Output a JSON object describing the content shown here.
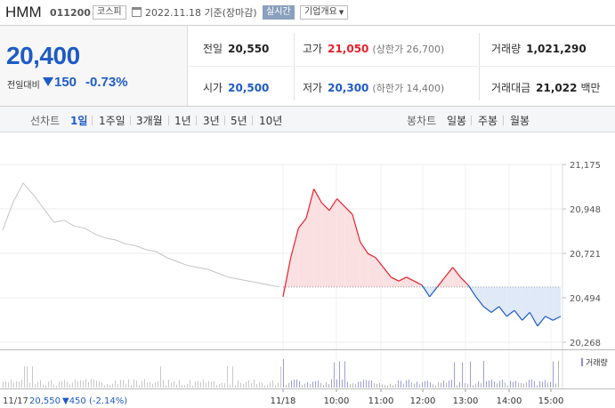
{
  "header": {
    "stock_name": "HMM",
    "stock_code": "011200",
    "market": "코스피",
    "date_text": "2022.11.18 기준(장마감)",
    "realtime_label": "실시간",
    "company_info_label": "기업개요"
  },
  "price": {
    "current": "20,400",
    "change_label": "전일대비",
    "change": "150",
    "change_pct": "-0.73%"
  },
  "stats": {
    "prev_close_label": "전일",
    "prev_close": "20,550",
    "high_label": "고가",
    "high": "21,050",
    "upper_limit": "(상한가 26,700)",
    "volume_label": "거래량",
    "volume": "1,021,290",
    "open_label": "시가",
    "open": "20,500",
    "low_label": "저가",
    "low": "20,300",
    "lower_limit": "(하한가 14,400)",
    "trade_value_label": "거래대금",
    "trade_value": "21,022",
    "trade_value_unit": "백만"
  },
  "period_bar": {
    "line_chart_label": "선차트",
    "line_tabs": [
      "1일",
      "1주일",
      "3개월",
      "1년",
      "3년",
      "5년",
      "10년"
    ],
    "active_tab": "1일",
    "candle_chart_label": "봉차트",
    "candle_tabs": [
      "일봉",
      "주봉",
      "월봉"
    ]
  },
  "chart_data": {
    "type": "line",
    "y_ticks": [
      "21,175",
      "20,948",
      "20,721",
      "20,494",
      "20,268"
    ],
    "ylim": [
      20268,
      21175
    ],
    "baseline": 20550,
    "x_tick_labels": [
      "11/18",
      "10:00",
      "11:00",
      "12:00",
      "13:00",
      "14:00",
      "15:00"
    ],
    "prev_day": {
      "label": "11/17",
      "close": "20,550",
      "change": "▼450",
      "change_pct": "(-2.14%)",
      "values": [
        20840,
        20980,
        21080,
        21020,
        20950,
        20880,
        20890,
        20860,
        20850,
        20820,
        20800,
        20790,
        20770,
        20760,
        20740,
        20730,
        20700,
        20680,
        20660,
        20650,
        20640,
        20620,
        20600,
        20590,
        20580,
        20570,
        20560,
        20550
      ]
    },
    "today": {
      "values": [
        20500,
        20700,
        20850,
        20900,
        21050,
        20980,
        20940,
        21000,
        20960,
        20920,
        20780,
        20720,
        20700,
        20650,
        20600,
        20580,
        20600,
        20580,
        20560,
        20500,
        20550,
        20600,
        20650,
        20600,
        20560,
        20500,
        20450,
        20420,
        20450,
        20400,
        20430,
        20380,
        20420,
        20350,
        20400,
        20380,
        20400
      ]
    },
    "volume_legend": "거래량",
    "grid": true
  },
  "colors": {
    "up": "#e8202a",
    "down": "#1e5bc6",
    "prev_line": "#c4c4c4",
    "up_fill": "#fbe0e2",
    "down_fill": "#dfe9f8"
  }
}
